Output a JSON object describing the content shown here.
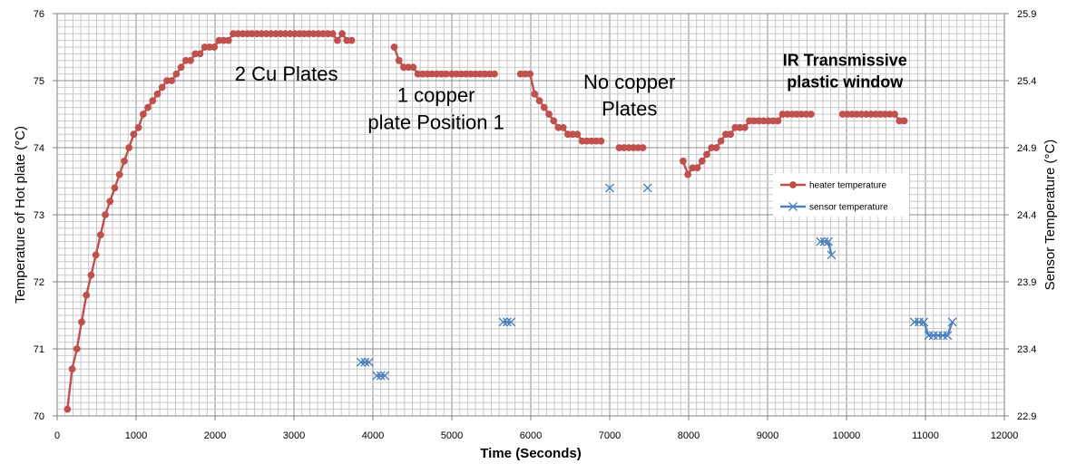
{
  "chart_data": {
    "type": "scatter",
    "xlabel": "Time (Seconds)",
    "ylabel_left": "Temperature of Hot plate (°C)",
    "ylabel_right": "Sensor Temperature (°C)",
    "xlim": [
      0,
      12000
    ],
    "xticks": [
      "0",
      "1000",
      "2000",
      "3000",
      "4000",
      "5000",
      "6000",
      "7000",
      "8000",
      "9000",
      "10000",
      "11000",
      "12000"
    ],
    "ylim_left": [
      70,
      76
    ],
    "yticks_left": [
      "70",
      "71",
      "72",
      "73",
      "74",
      "75",
      "76"
    ],
    "ylim_right": [
      22.9,
      25.9
    ],
    "yticks_right": [
      "22.9",
      "23.4",
      "23.9",
      "24.4",
      "24.9",
      "25.4",
      "25.9"
    ],
    "grid": true,
    "legend_position": "right",
    "series": [
      {
        "name": "heater temperature",
        "axis": "left",
        "color": "#c0504d",
        "marker": "circle",
        "segments": [
          [
            [
              130,
              70.1
            ],
            [
              190,
              70.7
            ],
            [
              250,
              71.0
            ],
            [
              310,
              71.4
            ],
            [
              370,
              71.8
            ],
            [
              430,
              72.1
            ],
            [
              490,
              72.4
            ],
            [
              550,
              72.7
            ],
            [
              610,
              73.0
            ],
            [
              670,
              73.2
            ],
            [
              730,
              73.4
            ],
            [
              790,
              73.6
            ],
            [
              850,
              73.8
            ],
            [
              910,
              74.0
            ],
            [
              970,
              74.2
            ],
            [
              1030,
              74.3
            ],
            [
              1090,
              74.5
            ],
            [
              1150,
              74.6
            ],
            [
              1210,
              74.7
            ],
            [
              1270,
              74.8
            ],
            [
              1330,
              74.9
            ],
            [
              1390,
              75.0
            ],
            [
              1450,
              75.0
            ],
            [
              1510,
              75.1
            ],
            [
              1570,
              75.2
            ],
            [
              1630,
              75.3
            ],
            [
              1690,
              75.3
            ],
            [
              1750,
              75.4
            ],
            [
              1810,
              75.4
            ],
            [
              1870,
              75.5
            ],
            [
              1930,
              75.5
            ],
            [
              1990,
              75.5
            ],
            [
              2050,
              75.6
            ],
            [
              2110,
              75.6
            ],
            [
              2170,
              75.6
            ],
            [
              2230,
              75.7
            ],
            [
              2290,
              75.7
            ],
            [
              2350,
              75.7
            ],
            [
              2410,
              75.7
            ],
            [
              2470,
              75.7
            ],
            [
              2530,
              75.7
            ],
            [
              2590,
              75.7
            ],
            [
              2650,
              75.7
            ],
            [
              2710,
              75.7
            ],
            [
              2770,
              75.7
            ],
            [
              2830,
              75.7
            ],
            [
              2890,
              75.7
            ],
            [
              2950,
              75.7
            ],
            [
              3010,
              75.7
            ],
            [
              3070,
              75.7
            ],
            [
              3130,
              75.7
            ],
            [
              3190,
              75.7
            ],
            [
              3250,
              75.7
            ],
            [
              3310,
              75.7
            ],
            [
              3370,
              75.7
            ],
            [
              3430,
              75.7
            ],
            [
              3490,
              75.7
            ],
            [
              3550,
              75.6
            ],
            [
              3610,
              75.7
            ],
            [
              3670,
              75.6
            ],
            [
              3730,
              75.6
            ]
          ],
          [
            [
              4270,
              75.5
            ],
            [
              4330,
              75.3
            ],
            [
              4390,
              75.2
            ],
            [
              4450,
              75.2
            ],
            [
              4510,
              75.2
            ],
            [
              4570,
              75.1
            ],
            [
              4630,
              75.1
            ],
            [
              4690,
              75.1
            ],
            [
              4750,
              75.1
            ],
            [
              4810,
              75.1
            ],
            [
              4870,
              75.1
            ],
            [
              4930,
              75.1
            ],
            [
              5000,
              75.1
            ],
            [
              5060,
              75.1
            ],
            [
              5120,
              75.1
            ],
            [
              5180,
              75.1
            ],
            [
              5240,
              75.1
            ],
            [
              5300,
              75.1
            ],
            [
              5360,
              75.1
            ],
            [
              5420,
              75.1
            ],
            [
              5480,
              75.1
            ],
            [
              5540,
              75.1
            ]
          ],
          [
            [
              5870,
              75.1
            ],
            [
              5930,
              75.1
            ],
            [
              5990,
              75.1
            ],
            [
              6050,
              74.8
            ],
            [
              6110,
              74.7
            ],
            [
              6170,
              74.6
            ],
            [
              6230,
              74.5
            ],
            [
              6290,
              74.4
            ],
            [
              6350,
              74.3
            ],
            [
              6410,
              74.3
            ],
            [
              6470,
              74.2
            ],
            [
              6530,
              74.2
            ],
            [
              6590,
              74.2
            ],
            [
              6650,
              74.1
            ],
            [
              6710,
              74.1
            ],
            [
              6770,
              74.1
            ],
            [
              6830,
              74.1
            ],
            [
              6890,
              74.1
            ]
          ],
          [
            [
              7120,
              74.0
            ],
            [
              7180,
              74.0
            ],
            [
              7240,
              74.0
            ],
            [
              7300,
              74.0
            ],
            [
              7360,
              74.0
            ],
            [
              7420,
              74.0
            ]
          ],
          [
            [
              7930,
              73.8
            ],
            [
              7990,
              73.6
            ],
            [
              8050,
              73.7
            ],
            [
              8110,
              73.7
            ],
            [
              8170,
              73.8
            ],
            [
              8230,
              73.9
            ],
            [
              8290,
              74.0
            ],
            [
              8350,
              74.0
            ],
            [
              8410,
              74.1
            ],
            [
              8470,
              74.2
            ],
            [
              8530,
              74.2
            ],
            [
              8590,
              74.3
            ],
            [
              8650,
              74.3
            ],
            [
              8710,
              74.3
            ],
            [
              8770,
              74.4
            ],
            [
              8830,
              74.4
            ],
            [
              8890,
              74.4
            ],
            [
              8950,
              74.4
            ],
            [
              9010,
              74.4
            ],
            [
              9070,
              74.4
            ],
            [
              9130,
              74.4
            ],
            [
              9190,
              74.5
            ],
            [
              9250,
              74.5
            ],
            [
              9310,
              74.5
            ],
            [
              9370,
              74.5
            ],
            [
              9430,
              74.5
            ],
            [
              9490,
              74.5
            ],
            [
              9550,
              74.5
            ]
          ],
          [
            [
              9950,
              74.5
            ],
            [
              10010,
              74.5
            ],
            [
              10070,
              74.5
            ],
            [
              10130,
              74.5
            ],
            [
              10190,
              74.5
            ],
            [
              10250,
              74.5
            ],
            [
              10310,
              74.5
            ],
            [
              10370,
              74.5
            ],
            [
              10430,
              74.5
            ],
            [
              10490,
              74.5
            ],
            [
              10550,
              74.5
            ],
            [
              10610,
              74.5
            ],
            [
              10670,
              74.4
            ],
            [
              10730,
              74.4
            ]
          ]
        ]
      },
      {
        "name": "sensor temperature",
        "axis": "right",
        "color": "#4f81bd",
        "marker": "x",
        "segments": [
          [
            [
              3850,
              23.3
            ],
            [
              3900,
              23.3
            ],
            [
              3950,
              23.3
            ]
          ],
          [
            [
              4050,
              23.2
            ],
            [
              4100,
              23.2
            ],
            [
              4150,
              23.2
            ]
          ],
          [
            [
              5650,
              23.6
            ],
            [
              5700,
              23.6
            ],
            [
              5750,
              23.6
            ]
          ],
          [
            [
              7000,
              24.6
            ]
          ],
          [
            [
              7480,
              24.6
            ]
          ],
          [
            [
              9670,
              24.2
            ],
            [
              9720,
              24.2
            ],
            [
              9770,
              24.2
            ],
            [
              9810,
              24.1
            ]
          ],
          [
            [
              10860,
              23.6
            ],
            [
              10920,
              23.6
            ],
            [
              10980,
              23.6
            ],
            [
              11040,
              23.5
            ],
            [
              11100,
              23.5
            ],
            [
              11160,
              23.5
            ],
            [
              11220,
              23.5
            ],
            [
              11280,
              23.5
            ],
            [
              11340,
              23.6
            ]
          ]
        ]
      }
    ],
    "annotations": [
      {
        "text": "2 Cu Plates",
        "x": 2250,
        "y": 75.0,
        "anchor": "start",
        "style": "normal"
      },
      {
        "text": "1 copper",
        "x": 4800,
        "y": 74.68,
        "anchor": "middle",
        "style": "normal"
      },
      {
        "text": "plate Position 1",
        "x": 4800,
        "y": 74.28,
        "anchor": "middle",
        "style": "normal"
      },
      {
        "text": "No copper",
        "x": 7250,
        "y": 74.88,
        "anchor": "middle",
        "style": "normal"
      },
      {
        "text": "Plates",
        "x": 7250,
        "y": 74.48,
        "anchor": "middle",
        "style": "normal"
      },
      {
        "text": "IR Transmissive",
        "x": 9980,
        "y": 75.22,
        "anchor": "middle",
        "style": "bold"
      },
      {
        "text": "plastic window",
        "x": 9980,
        "y": 74.9,
        "anchor": "middle",
        "style": "bold"
      }
    ]
  }
}
